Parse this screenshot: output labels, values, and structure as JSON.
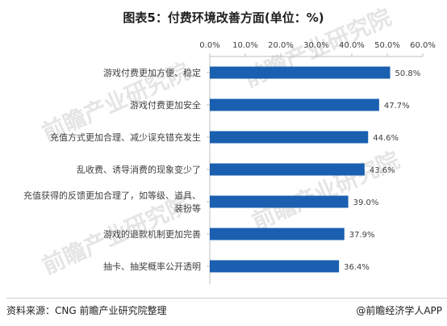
{
  "title": "图表5：付费环境改善方面(单位：%)",
  "footer": {
    "source": "资料来源：CNG 前瞻产业研究院整理",
    "credit": "@前瞻经济学人APP"
  },
  "watermark": {
    "brand": "前瞻产业研究院"
  },
  "colors": {
    "bar": "#1a5fb0",
    "axis": "#bfbfbf",
    "text": "#404040"
  },
  "chart_data": {
    "type": "bar",
    "orientation": "horizontal",
    "categories": [
      [
        "游戏付费更加方便、稳定"
      ],
      [
        "游戏付费更加安全"
      ],
      [
        "充值方式更加合理、减少误充错充发生"
      ],
      [
        "乱收费、诱导消费的现象变少了"
      ],
      [
        "充值获得的反馈更加合理了，如等级、道具、",
        "装扮等"
      ],
      [
        "游戏的退款机制更加完善"
      ],
      [
        "抽卡、抽奖概率公开透明"
      ]
    ],
    "values": [
      50.8,
      47.7,
      44.6,
      43.6,
      39.0,
      37.9,
      36.4
    ],
    "data_labels": [
      "50.8%",
      "47.7%",
      "44.6%",
      "43.6%",
      "39.0%",
      "37.9%",
      "36.4%"
    ],
    "x_ticks": [
      "0.0%",
      "10.0%",
      "20.0%",
      "30.0%",
      "40.0%",
      "50.0%",
      "60.0%"
    ],
    "xlim": [
      0,
      60
    ],
    "axis_position": "top",
    "grid": false,
    "legend": "none"
  }
}
